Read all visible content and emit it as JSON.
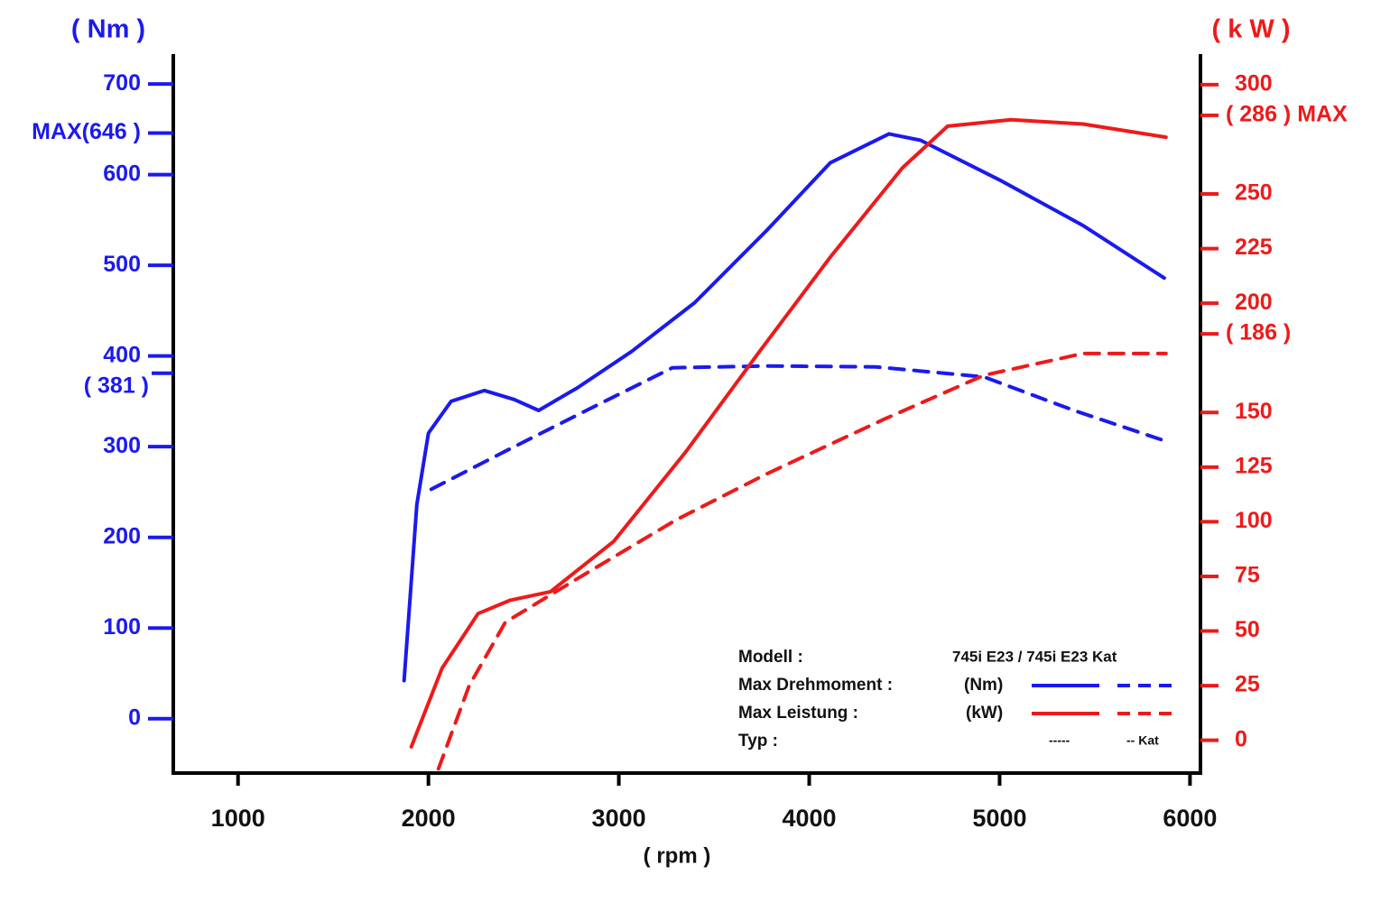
{
  "chart_data": {
    "type": "line",
    "y_label": "( Nm )",
    "y2_label": "( k W )",
    "x_label": "( rpm )",
    "xlim": [
      660,
      6055
    ],
    "xticks": [
      1000,
      2000,
      3000,
      4000,
      5000,
      6000
    ],
    "ylim": [
      -60,
      733
    ],
    "yticks": [
      0,
      100,
      200,
      300,
      {
        "value": 381,
        "label": "( 381 )"
      },
      400,
      500,
      600,
      {
        "value": 646,
        "label": "MAX(646 )"
      },
      700
    ],
    "y2lim": [
      -15,
      314
    ],
    "y2ticks": [
      0,
      25,
      50,
      75,
      100,
      125,
      150,
      {
        "value": 186,
        "label": "( 186 )"
      },
      200,
      225,
      250,
      {
        "value": 286,
        "label": "( 286 ) MAX"
      },
      300
    ],
    "series": [
      {
        "color": "#1a1aee",
        "dashed": false,
        "x": [
          1872,
          1939,
          2000,
          2119,
          2294,
          2451,
          2579,
          2783,
          3067,
          3399,
          3779,
          4110,
          4419,
          4585,
          5011,
          5438,
          5865
        ],
        "values": [
          42,
          236,
          315,
          350,
          362,
          352,
          340,
          365,
          405,
          459,
          539,
          613,
          645,
          638,
          593,
          544,
          486
        ]
      },
      {
        "color": "#1a1aee",
        "dashed": true,
        "x": [
          2015,
          2404,
          2830,
          3281,
          3779,
          4348,
          4917,
          5391,
          5889
        ],
        "values": [
          253,
          295,
          340,
          387,
          389,
          388,
          377,
          340,
          305
        ]
      },
      {
        "color": "#ee1a1a",
        "dashed": false,
        "axis": "y2",
        "x": [
          1910,
          2072,
          2261,
          2427,
          2641,
          2973,
          3352,
          3731,
          4110,
          4490,
          4727,
          5059,
          5438,
          5874
        ],
        "values": [
          -3,
          33,
          58,
          64,
          68,
          91,
          132,
          177,
          221,
          262,
          281,
          284,
          282,
          276
        ]
      },
      {
        "color": "#ee1a1a",
        "dashed": true,
        "axis": "y2",
        "x": [
          2053,
          2214,
          2404,
          2783,
          3304,
          3779,
          4395,
          4917,
          5438,
          5874
        ],
        "values": [
          -13,
          25,
          54,
          74,
          101,
          122,
          147,
          167,
          177,
          177
        ]
      }
    ],
    "legend": {
      "model_label": "Modell :",
      "model": "745i E23 / 745i E23 Kat",
      "rows": [
        {
          "label": "Max Drehmoment :",
          "unit": "(Nm)"
        },
        {
          "label": "Max Leistung :",
          "unit": "(kW)"
        }
      ],
      "type_label": "Typ :",
      "solid": "-----",
      "dashed": "-- Kat"
    }
  }
}
